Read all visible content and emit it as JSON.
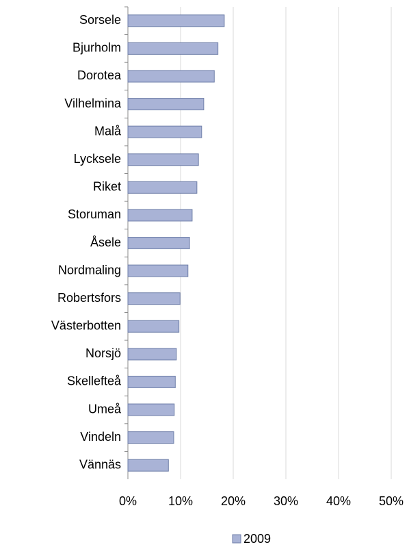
{
  "chart_data": {
    "type": "bar",
    "orientation": "horizontal",
    "categories": [
      "Sorsele",
      "Bjurholm",
      "Dorotea",
      "Vilhelmina",
      "Malå",
      "Lycksele",
      "Riket",
      "Storuman",
      "Åsele",
      "Nordmaling",
      "Robertsfors",
      "Västerbotten",
      "Norsjö",
      "Skellefteå",
      "Umeå",
      "Vindeln",
      "Vännäs"
    ],
    "series": [
      {
        "name": "2009",
        "color": "#a9b3d6",
        "values": [
          18.3,
          17.1,
          16.4,
          14.4,
          14.0,
          13.4,
          13.1,
          12.2,
          11.7,
          11.4,
          9.9,
          9.7,
          9.2,
          9.0,
          8.8,
          8.7,
          7.7
        ]
      }
    ],
    "xlim": [
      0,
      50
    ],
    "xticks": [
      {
        "value": 0,
        "label": "0%"
      },
      {
        "value": 10,
        "label": "10%"
      },
      {
        "value": 20,
        "label": "20%"
      },
      {
        "value": 30,
        "label": "30%"
      },
      {
        "value": 40,
        "label": "40%"
      },
      {
        "value": 50,
        "label": "50%"
      }
    ],
    "grid": true,
    "legend": "bottom"
  }
}
